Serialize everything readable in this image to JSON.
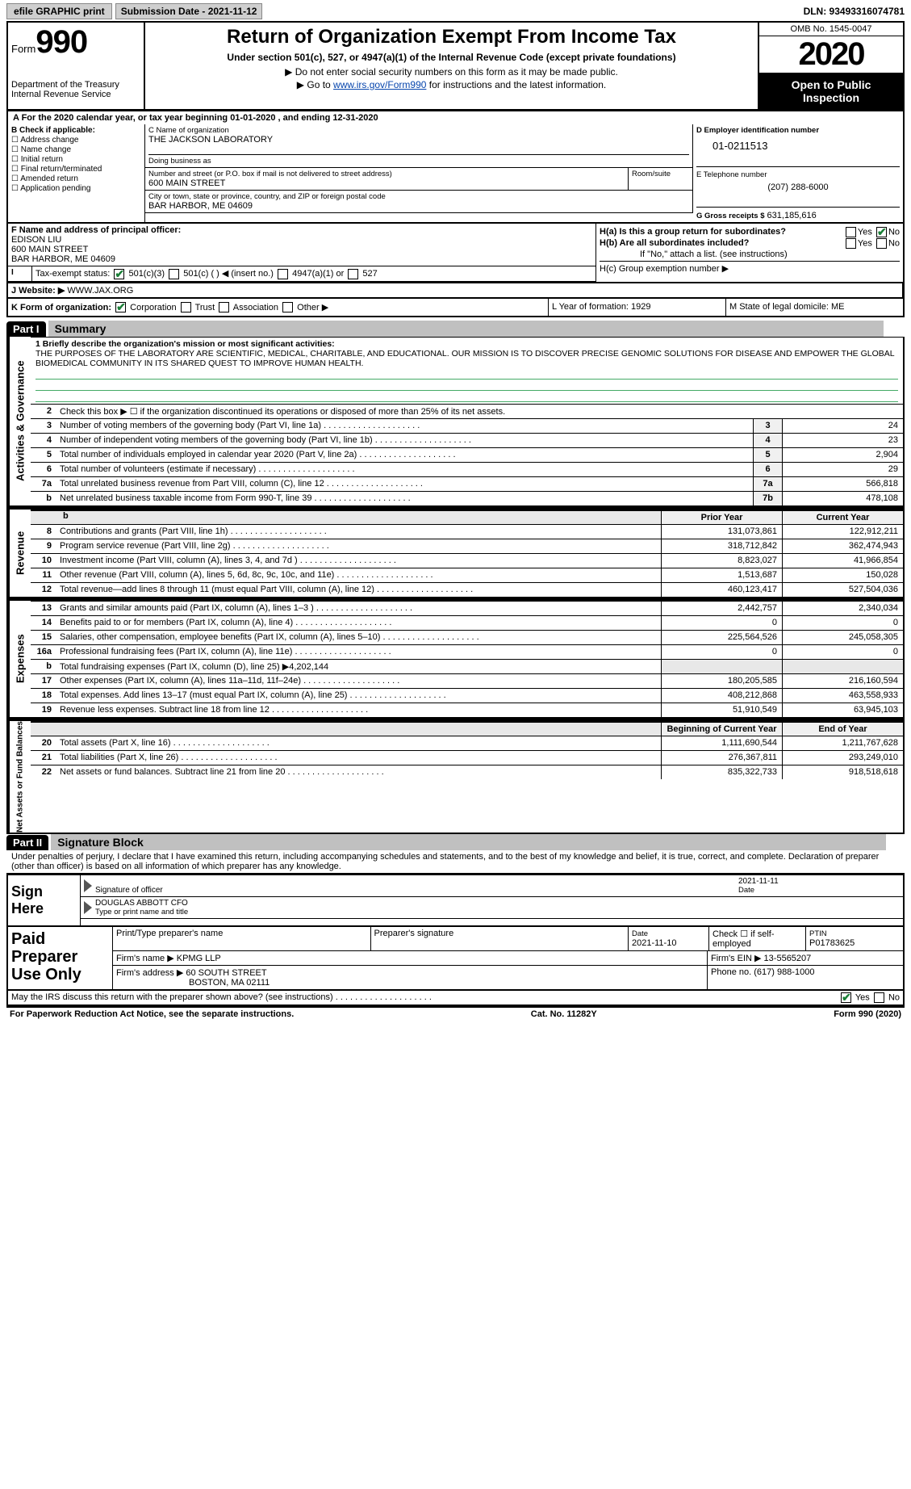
{
  "topbar": {
    "efile": "efile GRAPHIC print",
    "submission_label": "Submission Date - 2021-11-12",
    "dln_label": "DLN: 93493316074781"
  },
  "header": {
    "form_label": "Form",
    "form_num": "990",
    "dept": "Department of the Treasury",
    "irs": "Internal Revenue Service",
    "title": "Return of Organization Exempt From Income Tax",
    "subtitle": "Under section 501(c), 527, or 4947(a)(1) of the Internal Revenue Code (except private foundations)",
    "note1": "▶ Do not enter social security numbers on this form as it may be made public.",
    "note2_pre": "▶ Go to ",
    "note2_link": "www.irs.gov/Form990",
    "note2_post": " for instructions and the latest information.",
    "omb": "OMB No. 1545-0047",
    "year": "2020",
    "open": "Open to Public Inspection"
  },
  "line_a": "A  For the 2020 calendar year, or tax year beginning 01-01-2020    , and ending 12-31-2020",
  "box_b": {
    "label": "B Check if applicable:",
    "opts": [
      "Address change",
      "Name change",
      "Initial return",
      "Final return/terminated",
      "Amended return",
      "Application pending"
    ]
  },
  "box_c": {
    "name_label": "C Name of organization",
    "name": "THE JACKSON LABORATORY",
    "dba_label": "Doing business as",
    "addr_label": "Number and street (or P.O. box if mail is not delivered to street address)",
    "addr": "600 MAIN STREET",
    "room_label": "Room/suite",
    "city_label": "City or town, state or province, country, and ZIP or foreign postal code",
    "city": "BAR HARBOR, ME  04609"
  },
  "box_d": {
    "ein_label": "D Employer identification number",
    "ein": "01-0211513",
    "tel_label": "E Telephone number",
    "tel": "(207) 288-6000",
    "gross_label": "G Gross receipts $",
    "gross": "631,185,616"
  },
  "box_f": {
    "label": "F Name and address of principal officer:",
    "name": "EDISON LIU",
    "addr1": "600 MAIN STREET",
    "addr2": "BAR HARBOR, ME  04609"
  },
  "box_i": {
    "label": "Tax-exempt status:",
    "opt1": "501(c)(3)",
    "opt2": "501(c) (   ) ◀ (insert no.)",
    "opt3": "4947(a)(1) or",
    "opt4": "527"
  },
  "box_h": {
    "ha": "H(a)  Is this a group return for subordinates?",
    "yes": "Yes",
    "no": "No",
    "hb": "H(b)  Are all subordinates included?",
    "hb_note": "If \"No,\" attach a list. (see instructions)",
    "hc": "H(c)  Group exemption number ▶"
  },
  "box_j": {
    "label": "J  Website: ▶",
    "val": "WWW.JAX.ORG"
  },
  "box_k": {
    "label": "K Form of organization:",
    "opts": [
      "Corporation",
      "Trust",
      "Association",
      "Other ▶"
    ],
    "l": "L Year of formation: 1929",
    "m": "M State of legal domicile: ME"
  },
  "part1": {
    "hdr": "Part I",
    "title": "Summary",
    "l1_label": "1  Briefly describe the organization's mission or most significant activities:",
    "l1_text": "THE PURPOSES OF THE LABORATORY ARE SCIENTIFIC, MEDICAL, CHARITABLE, AND EDUCATIONAL. OUR MISSION IS TO DISCOVER PRECISE GENOMIC SOLUTIONS FOR DISEASE AND EMPOWER THE GLOBAL BIOMEDICAL COMMUNITY IN ITS SHARED QUEST TO IMPROVE HUMAN HEALTH.",
    "l2": "Check this box ▶ ☐ if the organization discontinued its operations or disposed of more than 25% of its net assets.",
    "gov": [
      {
        "n": "3",
        "d": "Number of voting members of the governing body (Part VI, line 1a)",
        "b": "3",
        "v": "24"
      },
      {
        "n": "4",
        "d": "Number of independent voting members of the governing body (Part VI, line 1b)",
        "b": "4",
        "v": "23"
      },
      {
        "n": "5",
        "d": "Total number of individuals employed in calendar year 2020 (Part V, line 2a)",
        "b": "5",
        "v": "2,904"
      },
      {
        "n": "6",
        "d": "Total number of volunteers (estimate if necessary)",
        "b": "6",
        "v": "29"
      },
      {
        "n": "7a",
        "d": "Total unrelated business revenue from Part VIII, column (C), line 12",
        "b": "7a",
        "v": "566,818"
      },
      {
        "n": "b",
        "d": "Net unrelated business taxable income from Form 990-T, line 39",
        "b": "7b",
        "v": "478,108"
      }
    ],
    "col_prior": "Prior Year",
    "col_current": "Current Year",
    "rev": [
      {
        "n": "8",
        "d": "Contributions and grants (Part VIII, line 1h)",
        "p": "131,073,861",
        "c": "122,912,211"
      },
      {
        "n": "9",
        "d": "Program service revenue (Part VIII, line 2g)",
        "p": "318,712,842",
        "c": "362,474,943"
      },
      {
        "n": "10",
        "d": "Investment income (Part VIII, column (A), lines 3, 4, and 7d )",
        "p": "8,823,027",
        "c": "41,966,854"
      },
      {
        "n": "11",
        "d": "Other revenue (Part VIII, column (A), lines 5, 6d, 8c, 9c, 10c, and 11e)",
        "p": "1,513,687",
        "c": "150,028"
      },
      {
        "n": "12",
        "d": "Total revenue—add lines 8 through 11 (must equal Part VIII, column (A), line 12)",
        "p": "460,123,417",
        "c": "527,504,036"
      }
    ],
    "exp": [
      {
        "n": "13",
        "d": "Grants and similar amounts paid (Part IX, column (A), lines 1–3 )",
        "p": "2,442,757",
        "c": "2,340,034"
      },
      {
        "n": "14",
        "d": "Benefits paid to or for members (Part IX, column (A), line 4)",
        "p": "0",
        "c": "0"
      },
      {
        "n": "15",
        "d": "Salaries, other compensation, employee benefits (Part IX, column (A), lines 5–10)",
        "p": "225,564,526",
        "c": "245,058,305"
      },
      {
        "n": "16a",
        "d": "Professional fundraising fees (Part IX, column (A), line 11e)",
        "p": "0",
        "c": "0"
      },
      {
        "n": "b",
        "d": "Total fundraising expenses (Part IX, column (D), line 25) ▶4,202,144",
        "p": "",
        "c": ""
      },
      {
        "n": "17",
        "d": "Other expenses (Part IX, column (A), lines 11a–11d, 11f–24e)",
        "p": "180,205,585",
        "c": "216,160,594"
      },
      {
        "n": "18",
        "d": "Total expenses. Add lines 13–17 (must equal Part IX, column (A), line 25)",
        "p": "408,212,868",
        "c": "463,558,933"
      },
      {
        "n": "19",
        "d": "Revenue less expenses. Subtract line 18 from line 12",
        "p": "51,910,549",
        "c": "63,945,103"
      }
    ],
    "col_begin": "Beginning of Current Year",
    "col_end": "End of Year",
    "net": [
      {
        "n": "20",
        "d": "Total assets (Part X, line 16)",
        "p": "1,111,690,544",
        "c": "1,211,767,628"
      },
      {
        "n": "21",
        "d": "Total liabilities (Part X, line 26)",
        "p": "276,367,811",
        "c": "293,249,010"
      },
      {
        "n": "22",
        "d": "Net assets or fund balances. Subtract line 21 from line 20",
        "p": "835,322,733",
        "c": "918,518,618"
      }
    ],
    "side_gov": "Activities & Governance",
    "side_rev": "Revenue",
    "side_exp": "Expenses",
    "side_net": "Net Assets or Fund Balances"
  },
  "part2": {
    "hdr": "Part II",
    "title": "Signature Block",
    "decl": "Under penalties of perjury, I declare that I have examined this return, including accompanying schedules and statements, and to the best of my knowledge and belief, it is true, correct, and complete. Declaration of preparer (other than officer) is based on all information of which preparer has any knowledge.",
    "sign_here": "Sign Here",
    "sig_officer": "Signature of officer",
    "sig_date": "2021-11-11",
    "date_label": "Date",
    "officer_name": "DOUGLAS ABBOTT CFO",
    "officer_type": "Type or print name and title"
  },
  "paid": {
    "label": "Paid Preparer Use Only",
    "r1": {
      "a": "Print/Type preparer's name",
      "b": "Preparer's signature",
      "c": "Date",
      "cv": "2021-11-10",
      "d": "Check ☐ if self-employed",
      "e": "PTIN",
      "ev": "P01783625"
    },
    "r2": {
      "a": "Firm's name   ▶ KPMG LLP",
      "b": "Firm's EIN ▶ 13-5565207"
    },
    "r3": {
      "a": "Firm's address ▶ 60 SOUTH STREET",
      "a2": "BOSTON, MA  02111",
      "b": "Phone no. (617) 988-1000"
    }
  },
  "footer": {
    "q": "May the IRS discuss this return with the preparer shown above? (see instructions)",
    "yes": "Yes",
    "no": "No",
    "pra": "For Paperwork Reduction Act Notice, see the separate instructions.",
    "cat": "Cat. No. 11282Y",
    "form": "Form 990 (2020)"
  }
}
